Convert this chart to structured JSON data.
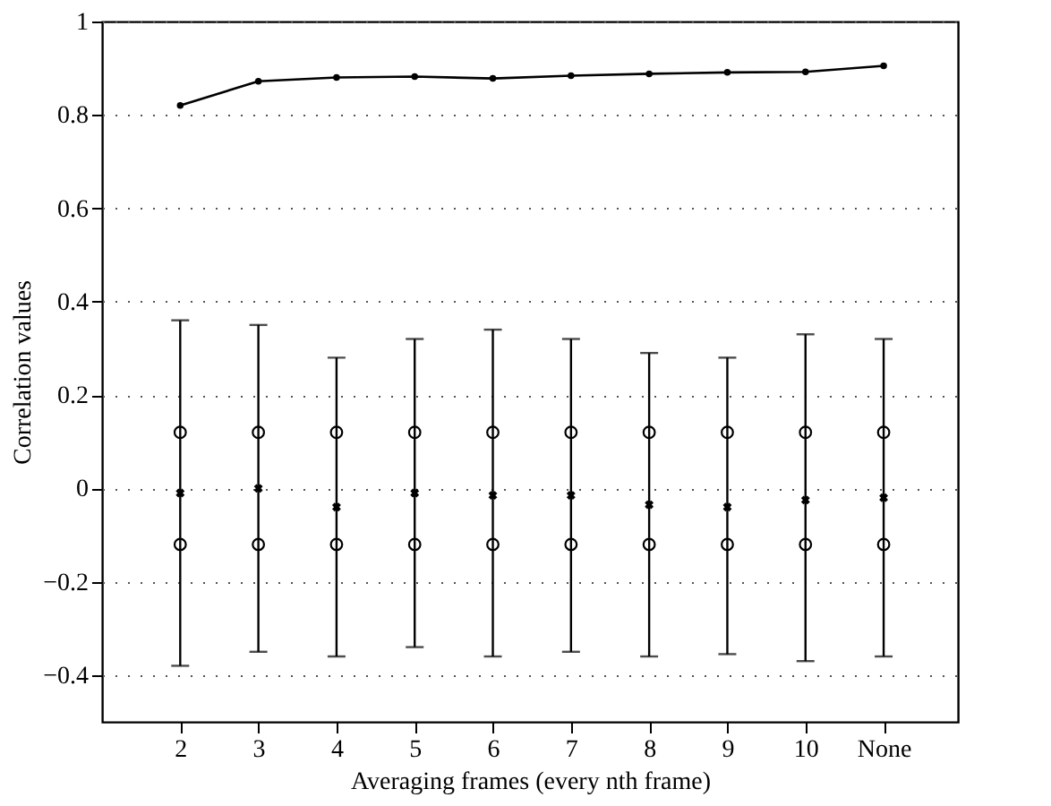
{
  "chart_data": {
    "type": "line",
    "xlabel": "Averaging frames (every nth frame)",
    "ylabel": "Correlation values",
    "categories": [
      "2",
      "3",
      "4",
      "5",
      "6",
      "7",
      "8",
      "9",
      "10",
      "None"
    ],
    "series": [
      {
        "color": "#000000",
        "marker": "circle",
        "values": [
          0.82,
          0.872,
          0.88,
          0.882,
          0.878,
          0.884,
          0.888,
          0.891,
          0.892,
          0.905
        ]
      },
      {
        "type": "scatter",
        "color": "#000000",
        "marker": "cross",
        "values": [
          -0.01,
          0.0,
          -0.04,
          -0.01,
          -0.015,
          -0.015,
          -0.035,
          -0.04,
          -0.025,
          -0.02
        ],
        "errors": [
          [
            -0.38,
            0.36
          ],
          [
            -0.35,
            0.35
          ],
          [
            -0.36,
            0.28
          ],
          [
            -0.34,
            0.32
          ],
          [
            -0.36,
            0.34
          ],
          [
            -0.35,
            0.32
          ],
          [
            -0.36,
            0.29
          ],
          [
            -0.355,
            0.28
          ],
          [
            -0.37,
            0.33
          ],
          [
            -0.36,
            0.32
          ]
        ]
      },
      {
        "type": "scatter",
        "color": "#000000",
        "marker": "circle",
        "values": [
          0.12,
          0.12,
          0.12,
          0.12,
          0.12,
          0.12,
          0.12,
          0.12,
          0.12,
          0.12
        ]
      },
      {
        "type": "scatter",
        "color": "#000000",
        "marker": "circle",
        "values": [
          -0.12,
          -0.12,
          -0.12,
          -0.12,
          -0.12,
          -0.12,
          -0.12,
          -0.12,
          -0.12,
          -0.12
        ]
      }
    ],
    "ylim": [
      -0.5,
      1
    ],
    "yticks": [
      -0.4,
      -0.2,
      0,
      0.2,
      0.4,
      0.6,
      0.8,
      1
    ],
    "grid": "y"
  }
}
